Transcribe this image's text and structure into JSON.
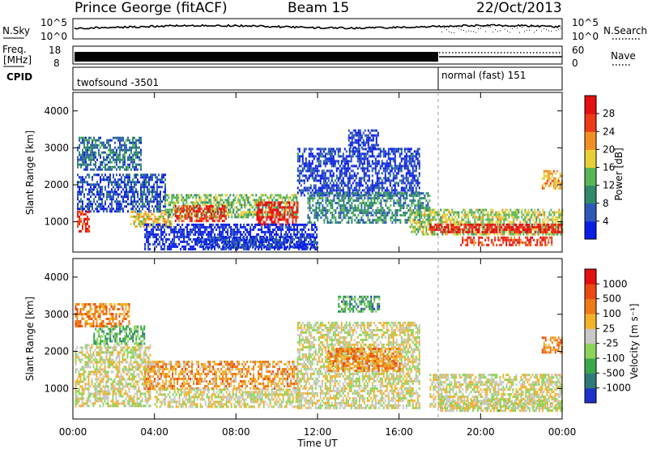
{
  "header": {
    "station": "Prince George (fitACF)",
    "beam": "Beam 15",
    "date": "22/Oct/2013"
  },
  "noise_panel": {
    "left_label": "N.Sky",
    "right_label": "N.Search",
    "left_ticks": [
      "10^5",
      "10^0"
    ],
    "right_ticks": [
      "10^5",
      "10^0"
    ]
  },
  "freq_panel": {
    "left_label_line1": "Freq.",
    "left_label_line2": "[MHz]",
    "left_ticks": [
      "18",
      "8"
    ],
    "right_ticks": [
      "60",
      "0"
    ],
    "right_label": "Nave"
  },
  "cpid_panel": {
    "label": "CPID",
    "segments": [
      {
        "name": "twofsound -3501",
        "start_hour": 0
      },
      {
        "name": "normal (fast) 151",
        "start_hour": 18
      }
    ]
  },
  "x_axis": {
    "title": "Time UT",
    "ticks": [
      "00:00",
      "04:00",
      "08:00",
      "12:00",
      "16:00",
      "20:00",
      "00:00"
    ],
    "range_hours": [
      0,
      24
    ]
  },
  "chart_data": [
    {
      "type": "heatmap",
      "title": "",
      "parameter": "Power",
      "ylabel": "Slant Range [km]",
      "xlabel": "",
      "xlim_hours": [
        0,
        24
      ],
      "ylim_km": [
        180,
        4500
      ],
      "y_ticks": [
        "1000",
        "2000",
        "3000",
        "4000"
      ],
      "colorbar_title": "Power [dB]",
      "colorbar_ticks": [
        "28",
        "24",
        "20",
        "16",
        "12",
        "8",
        "4"
      ],
      "colorbar_colors": [
        "#0a1ee6",
        "#2f58b8",
        "#2f8a6a",
        "#58b658",
        "#e8cf3a",
        "#f18f25",
        "#ee3a18",
        "#e41010"
      ],
      "regions": [
        {
          "t0": 0.2,
          "t1": 3.3,
          "r0": 2400,
          "r1": 3300,
          "level": 0.25
        },
        {
          "t0": 0.2,
          "t1": 4.5,
          "r0": 1300,
          "r1": 2300,
          "level": 0.15
        },
        {
          "t0": 0.2,
          "t1": 0.8,
          "r0": 750,
          "r1": 1300,
          "level": 0.85
        },
        {
          "t0": 2.8,
          "t1": 4.8,
          "r0": 900,
          "r1": 1300,
          "level": 0.6
        },
        {
          "t0": 4.5,
          "t1": 11.0,
          "r0": 1100,
          "r1": 1750,
          "level": 0.45
        },
        {
          "t0": 5.0,
          "t1": 7.5,
          "r0": 1000,
          "r1": 1450,
          "level": 0.85
        },
        {
          "t0": 9.0,
          "t1": 11.0,
          "r0": 900,
          "r1": 1550,
          "level": 0.9
        },
        {
          "t0": 3.5,
          "t1": 12.0,
          "r0": 250,
          "r1": 950,
          "level": 0.05
        },
        {
          "t0": 11.0,
          "t1": 17.0,
          "r0": 1750,
          "r1": 3000,
          "level": 0.12
        },
        {
          "t0": 13.5,
          "t1": 15.0,
          "r0": 3000,
          "r1": 3500,
          "level": 0.1
        },
        {
          "t0": 11.5,
          "t1": 17.5,
          "r0": 1000,
          "r1": 1800,
          "level": 0.3
        },
        {
          "t0": 16.5,
          "t1": 24.0,
          "r0": 650,
          "r1": 1350,
          "level": 0.5
        },
        {
          "t0": 17.5,
          "t1": 24.0,
          "r0": 700,
          "r1": 950,
          "level": 0.92
        },
        {
          "t0": 19.0,
          "t1": 23.5,
          "r0": 350,
          "r1": 600,
          "level": 0.85
        },
        {
          "t0": 23.0,
          "t1": 24.0,
          "r0": 1900,
          "r1": 2400,
          "level": 0.65
        },
        {
          "t0": 6.0,
          "t1": 12.0,
          "r0": 280,
          "r1": 600,
          "level": 0.12
        }
      ]
    },
    {
      "type": "heatmap",
      "title": "",
      "parameter": "Velocity",
      "ylabel": "Slant Range [km]",
      "xlabel": "Time UT",
      "xlim_hours": [
        0,
        24
      ],
      "ylim_km": [
        180,
        4500
      ],
      "y_ticks": [
        "1000",
        "2000",
        "3000",
        "4000"
      ],
      "colorbar_title": "Velocity [m s⁻¹]",
      "colorbar_ticks": [
        "1000",
        "500",
        "100",
        "25",
        "-25",
        "-100",
        "-500",
        "-1000"
      ],
      "colorbar_colors": [
        "#1e32c8",
        "#2f7a78",
        "#3aa64a",
        "#8cd45a",
        "#c8c8c4",
        "#f2b22a",
        "#ef7a18",
        "#ea4a12",
        "#e41010"
      ],
      "regions": [
        {
          "t0": 0.1,
          "t1": 2.8,
          "r0": 2700,
          "r1": 3300,
          "level": 0.7
        },
        {
          "t0": 0.1,
          "t1": 3.8,
          "r0": 500,
          "r1": 2200,
          "level": 0.5
        },
        {
          "t0": 1.0,
          "t1": 3.5,
          "r0": 2200,
          "r1": 2700,
          "level": 0.3
        },
        {
          "t0": 3.5,
          "t1": 11.0,
          "r0": 1000,
          "r1": 1750,
          "level": 0.65
        },
        {
          "t0": 4.0,
          "t1": 11.0,
          "r0": 500,
          "r1": 1000,
          "level": 0.5
        },
        {
          "t0": 11.0,
          "t1": 17.0,
          "r0": 500,
          "r1": 2800,
          "level": 0.5
        },
        {
          "t0": 13.0,
          "t1": 15.0,
          "r0": 3100,
          "r1": 3500,
          "level": 0.25
        },
        {
          "t0": 12.5,
          "t1": 16.0,
          "r0": 1500,
          "r1": 2100,
          "level": 0.7
        },
        {
          "t0": 17.5,
          "t1": 24.0,
          "r0": 500,
          "r1": 1400,
          "level": 0.5
        },
        {
          "t0": 23.0,
          "t1": 24.0,
          "r0": 1950,
          "r1": 2400,
          "level": 0.72
        },
        {
          "t0": 18.0,
          "t1": 24.0,
          "r0": 400,
          "r1": 700,
          "level": 0.48
        }
      ]
    }
  ]
}
